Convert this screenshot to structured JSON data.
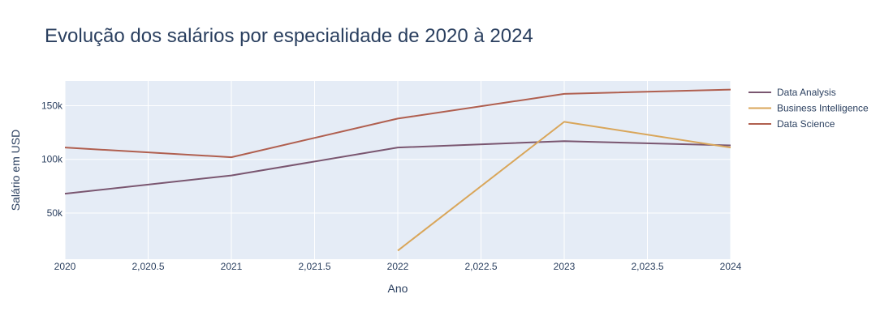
{
  "chart_data": {
    "type": "line",
    "title": "Evolução dos salários por especialidade de 2020 à 2024",
    "xlabel": "Ano",
    "ylabel": "Salário em USD",
    "xlim": [
      2020,
      2024
    ],
    "ylim": [
      7000,
      173000
    ],
    "grid": true,
    "legend_position": "right",
    "x_ticks": [
      2020,
      2020.5,
      2021,
      2021.5,
      2022,
      2022.5,
      2023,
      2023.5,
      2024
    ],
    "x_tick_labels": [
      "2020",
      "2,020.5",
      "2021",
      "2,021.5",
      "2022",
      "2,022.5",
      "2023",
      "2,023.5",
      "2024"
    ],
    "y_ticks": [
      50000,
      100000,
      150000
    ],
    "y_tick_labels": [
      "50k",
      "100k",
      "150k"
    ],
    "series": [
      {
        "name": "Data Analysis",
        "color": "#7a5670",
        "x": [
          2020,
          2021,
          2022,
          2023,
          2024
        ],
        "y": [
          68000,
          85000,
          111000,
          117000,
          113000
        ]
      },
      {
        "name": "Business Intelligence",
        "color": "#d9a65a",
        "x": [
          2022,
          2023,
          2024
        ],
        "y": [
          15000,
          135000,
          111000
        ]
      },
      {
        "name": "Data Science",
        "color": "#b05f4f",
        "x": [
          2020,
          2021,
          2022,
          2023,
          2024
        ],
        "y": [
          111000,
          102000,
          138000,
          161000,
          165000
        ]
      }
    ]
  },
  "colors": {
    "plot_background": "#e5ecf6",
    "grid": "#ffffff",
    "text": "#2a3f5f"
  }
}
